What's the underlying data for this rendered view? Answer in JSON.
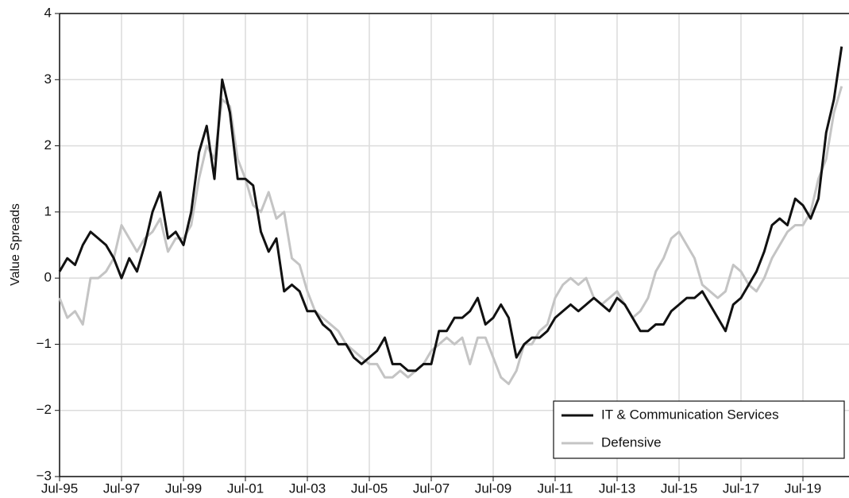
{
  "chart_data": {
    "type": "line",
    "y_label": "Value Spreads",
    "categories": [
      "Jul-95",
      null,
      null,
      null,
      null,
      null,
      null,
      null,
      "Jul-97",
      null,
      null,
      null,
      null,
      null,
      null,
      null,
      "Jul-99",
      null,
      null,
      null,
      null,
      null,
      null,
      null,
      "Jul-01",
      null,
      null,
      null,
      null,
      null,
      null,
      null,
      "Jul-03",
      null,
      null,
      null,
      null,
      null,
      null,
      null,
      "Jul-05",
      null,
      null,
      null,
      null,
      null,
      null,
      null,
      "Jul-07",
      null,
      null,
      null,
      null,
      null,
      null,
      null,
      "Jul-09",
      null,
      null,
      null,
      null,
      null,
      null,
      null,
      "Jul-11",
      null,
      null,
      null,
      null,
      null,
      null,
      null,
      "Jul-13",
      null,
      null,
      null,
      null,
      null,
      null,
      null,
      "Jul-15",
      null,
      null,
      null,
      null,
      null,
      null,
      null,
      "Jul-17",
      null,
      null,
      null,
      null,
      null,
      null,
      null,
      "Jul-19",
      null,
      null,
      null,
      null,
      null
    ],
    "series": [
      {
        "name": "IT & Communication Services",
        "color": "#111111",
        "values": [
          0.1,
          0.3,
          0.2,
          0.5,
          0.7,
          0.6,
          0.5,
          0.3,
          0.0,
          0.3,
          0.1,
          0.5,
          1.0,
          1.3,
          0.6,
          0.7,
          0.5,
          1.0,
          1.9,
          2.3,
          1.5,
          3.0,
          2.5,
          1.5,
          1.5,
          1.4,
          0.7,
          0.4,
          0.6,
          -0.2,
          -0.1,
          -0.2,
          -0.5,
          -0.5,
          -0.7,
          -0.8,
          -1.0,
          -1.0,
          -1.2,
          -1.3,
          -1.2,
          -1.1,
          -0.9,
          -1.3,
          -1.3,
          -1.4,
          -1.4,
          -1.3,
          -1.3,
          -0.8,
          -0.8,
          -0.6,
          -0.6,
          -0.5,
          -0.3,
          -0.7,
          -0.6,
          -0.4,
          -0.6,
          -1.2,
          -1.0,
          -0.9,
          -0.9,
          -0.8,
          -0.6,
          -0.5,
          -0.4,
          -0.5,
          -0.4,
          -0.3,
          -0.4,
          -0.5,
          -0.3,
          -0.4,
          -0.6,
          -0.8,
          -0.8,
          -0.7,
          -0.7,
          -0.5,
          -0.4,
          -0.3,
          -0.3,
          -0.2,
          -0.4,
          -0.6,
          -0.8,
          -0.4,
          -0.3,
          -0.1,
          0.1,
          0.4,
          0.8,
          0.9,
          0.8,
          1.2,
          1.1,
          0.9,
          1.2,
          2.2,
          2.7,
          3.5
        ]
      },
      {
        "name": "Defensive",
        "color": "#c4c4c4",
        "values": [
          -0.3,
          -0.6,
          -0.5,
          -0.7,
          0.0,
          0.0,
          0.1,
          0.3,
          0.8,
          0.6,
          0.4,
          0.6,
          0.7,
          0.9,
          0.4,
          0.6,
          0.6,
          0.8,
          1.5,
          2.0,
          1.8,
          2.7,
          2.6,
          1.8,
          1.5,
          1.1,
          1.0,
          1.3,
          0.9,
          1.0,
          0.3,
          0.2,
          -0.2,
          -0.5,
          -0.6,
          -0.7,
          -0.8,
          -1.0,
          -1.1,
          -1.2,
          -1.3,
          -1.3,
          -1.5,
          -1.5,
          -1.4,
          -1.5,
          -1.4,
          -1.3,
          -1.1,
          -1.0,
          -0.9,
          -1.0,
          -0.9,
          -1.3,
          -0.9,
          -0.9,
          -1.2,
          -1.5,
          -1.6,
          -1.4,
          -1.0,
          -1.0,
          -0.8,
          -0.7,
          -0.3,
          -0.1,
          0.0,
          -0.1,
          0.0,
          -0.3,
          -0.4,
          -0.3,
          -0.2,
          -0.4,
          -0.6,
          -0.5,
          -0.3,
          0.1,
          0.3,
          0.6,
          0.7,
          0.5,
          0.3,
          -0.1,
          -0.2,
          -0.3,
          -0.2,
          0.2,
          0.1,
          -0.1,
          -0.2,
          0.0,
          0.3,
          0.5,
          0.7,
          0.8,
          0.8,
          1.0,
          1.5,
          1.8,
          2.5,
          2.9
        ]
      }
    ],
    "ylim": [
      -3,
      4
    ],
    "yticks": [
      {
        "value": -3,
        "label": "−3"
      },
      {
        "value": -2,
        "label": "−2"
      },
      {
        "value": -1,
        "label": "−1"
      },
      0,
      1,
      2,
      3,
      4
    ],
    "grid": true,
    "legend": "lower right"
  }
}
